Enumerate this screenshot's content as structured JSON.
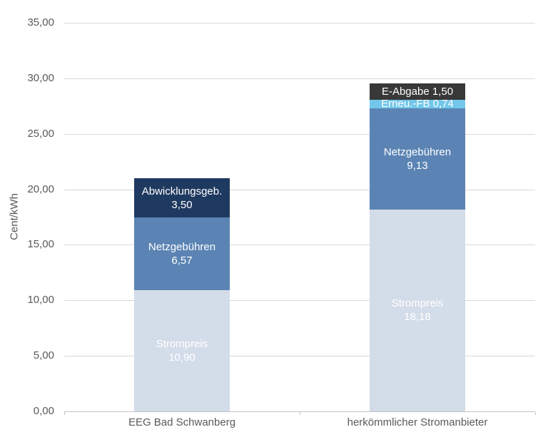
{
  "chart_data": {
    "type": "bar",
    "stacked": true,
    "title": "",
    "xlabel": "",
    "ylabel": "Cent/kWh",
    "ylim": [
      0,
      35
    ],
    "ytick_step": 5,
    "grid": true,
    "legend": "none (labels inside segments)",
    "decimal_format": "german-comma-2dp",
    "categories": [
      "EEG Bad Schwanberg",
      "herkömmlicher Stromanbieter"
    ],
    "series": [
      {
        "name": "Strompreis",
        "values": [
          10.9,
          18.18
        ],
        "color": "#d3dce9"
      },
      {
        "name": "Netzgebühren",
        "values": [
          6.57,
          9.13
        ],
        "color": "#5b84b4"
      },
      {
        "name": "Abwicklungsgeb.",
        "values": [
          3.5,
          0
        ],
        "color": "#1f3a60"
      },
      {
        "name": "Erneu.-FB",
        "values": [
          0,
          0.74
        ],
        "color": "#72c7ea"
      },
      {
        "name": "E-Abgabe",
        "values": [
          0,
          1.5
        ],
        "color": "#383838"
      }
    ],
    "totals": [
      20.97,
      29.55
    ],
    "colors": {
      "segment_label_text": "#ffffff",
      "axis_text": "#595959",
      "gridline": "#d9d9d9",
      "axis_line": "#c3c3c3",
      "background": "#ffffff"
    }
  }
}
